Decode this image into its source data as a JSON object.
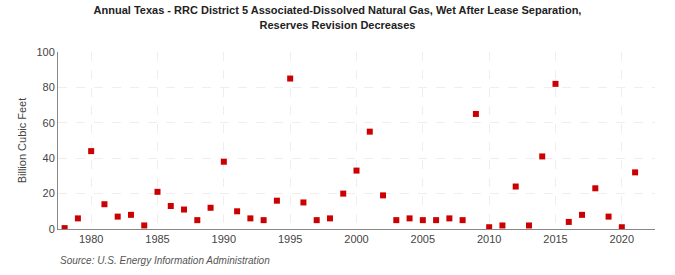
{
  "chart_data": {
    "type": "scatter",
    "title": "Annual Texas - RRC District 5 Associated-Dissolved Natural Gas, Wet After Lease Separation,\nReserves Revision Decreases",
    "ylabel": "Billion Cubic Feet",
    "annotations": [
      "Source: U.S. Energy Information Administration"
    ],
    "color": "#cc0000",
    "marker": "square",
    "grid": true,
    "xlim": [
      1977.5,
      2022.5
    ],
    "ylim": [
      0,
      100
    ],
    "xticks": [
      1980,
      1985,
      1990,
      1995,
      2000,
      2005,
      2010,
      2015,
      2020
    ],
    "yticks": [
      0,
      20,
      40,
      60,
      80,
      100
    ],
    "x": [
      1978,
      1979,
      1980,
      1981,
      1982,
      1983,
      1984,
      1985,
      1986,
      1987,
      1988,
      1989,
      1990,
      1991,
      1992,
      1993,
      1994,
      1995,
      1996,
      1997,
      1998,
      1999,
      2000,
      2001,
      2002,
      2003,
      2004,
      2005,
      2006,
      2007,
      2008,
      2009,
      2010,
      2011,
      2012,
      2013,
      2014,
      2015,
      2016,
      2017,
      2018,
      2019,
      2020,
      2021
    ],
    "values": [
      0.5,
      6,
      44,
      14,
      7,
      8,
      2,
      21,
      13,
      11,
      5,
      12,
      38,
      10,
      6,
      5,
      16,
      85,
      15,
      5,
      6,
      20,
      33,
      55,
      19,
      5,
      6,
      5,
      5,
      6,
      5,
      65,
      1,
      2,
      24,
      2,
      41,
      82,
      4,
      8,
      23,
      7,
      1,
      32
    ]
  }
}
